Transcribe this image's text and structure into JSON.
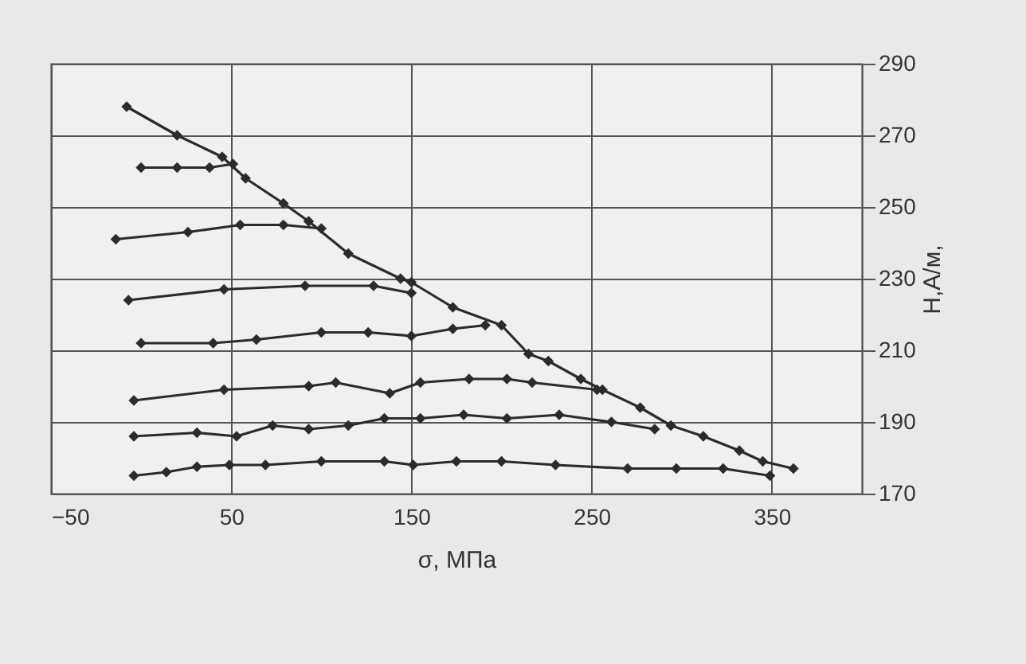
{
  "chart_data": {
    "type": "line",
    "xlabel": "σ, МПа",
    "ylabel": "H,А/м,",
    "xlim": [
      -50,
      400
    ],
    "xticks": [
      -50,
      50,
      150,
      250,
      350
    ],
    "ylim": [
      170,
      290
    ],
    "yticks": [
      170,
      190,
      210,
      230,
      250,
      270,
      290
    ],
    "grid": true,
    "marker": "diamond",
    "line_style": "solid",
    "series": [
      {
        "color": "#2b2b2b",
        "x": [
          -8,
          20,
          45,
          58,
          79,
          93,
          115,
          144,
          150,
          173,
          200,
          215,
          226,
          244,
          256,
          277,
          294,
          312,
          332,
          345,
          362
        ],
        "values": [
          278,
          270,
          264,
          258,
          251,
          246,
          237,
          230,
          229,
          222,
          217,
          209,
          207,
          202,
          199,
          194,
          189,
          186,
          182,
          179,
          177
        ]
      },
      {
        "color": "#2b2b2b",
        "x": [
          0,
          20,
          38,
          51
        ],
        "values": [
          261,
          261,
          261,
          262
        ]
      },
      {
        "color": "#2b2b2b",
        "x": [
          -14,
          26,
          55,
          79,
          100
        ],
        "values": [
          241,
          243,
          245,
          245,
          244
        ]
      },
      {
        "color": "#2b2b2b",
        "x": [
          -7,
          46,
          91,
          129,
          150
        ],
        "values": [
          224,
          227,
          228,
          228,
          226
        ]
      },
      {
        "color": "#2b2b2b",
        "x": [
          0,
          40,
          64,
          100,
          126,
          150,
          173,
          191
        ],
        "values": [
          212,
          212,
          213,
          215,
          215,
          214,
          216,
          217
        ]
      },
      {
        "color": "#2b2b2b",
        "x": [
          -4,
          46,
          93,
          108,
          138,
          155,
          182,
          203,
          217,
          253
        ],
        "values": [
          196,
          199,
          200,
          201,
          198,
          201,
          202,
          202,
          201,
          199
        ]
      },
      {
        "color": "#2b2b2b",
        "x": [
          -4,
          31,
          53,
          73,
          93,
          115,
          135,
          155,
          179,
          203,
          232,
          261,
          285
        ],
        "values": [
          186,
          187,
          186,
          189,
          188,
          189,
          191,
          191,
          192,
          191,
          192,
          190,
          188
        ]
      },
      {
        "color": "#2b2b2b",
        "x": [
          -4,
          14,
          31,
          49,
          69,
          100,
          135,
          151,
          175,
          200,
          230,
          270,
          297,
          323,
          349
        ],
        "values": [
          175,
          176,
          177.5,
          178,
          178,
          179,
          179,
          178,
          179,
          179,
          178,
          177,
          177,
          177,
          175
        ]
      }
    ]
  }
}
